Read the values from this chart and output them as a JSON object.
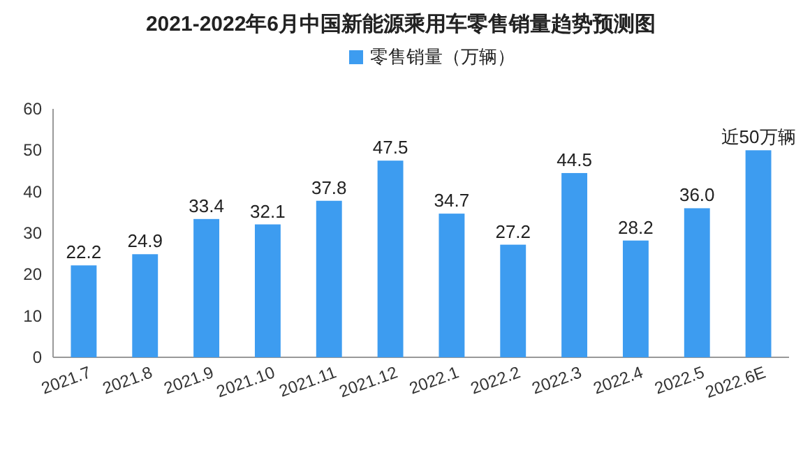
{
  "chart_data": {
    "type": "bar",
    "title": "2021-2022年6月中国新能源乘用车零售销量趋势预测图",
    "categories": [
      "2021.7",
      "2021.8",
      "2021.9",
      "2021.10",
      "2021.11",
      "2021.12",
      "2022.1",
      "2022.2",
      "2022.3",
      "2022.4",
      "2022.5",
      "2022.6E"
    ],
    "series": [
      {
        "name": "零售销量（万辆）",
        "color": "#3d9cf0",
        "values": [
          22.2,
          24.9,
          33.4,
          32.1,
          37.8,
          47.5,
          34.7,
          27.2,
          44.5,
          28.2,
          36.0,
          50
        ],
        "value_labels": [
          "22.2",
          "24.9",
          "33.4",
          "32.1",
          "37.8",
          "47.5",
          "34.7",
          "27.2",
          "44.5",
          "28.2",
          "36.0",
          "近50万辆"
        ]
      }
    ],
    "ylim": [
      0,
      60
    ],
    "yticks": [
      0,
      10,
      20,
      30,
      40,
      50,
      60
    ],
    "grid": false,
    "legend": "top"
  }
}
